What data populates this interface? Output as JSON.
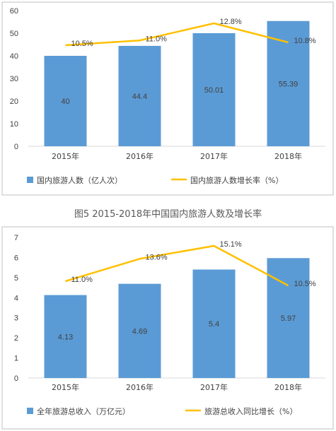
{
  "caption": "图5 2015-2018年中国国内旅游人数及增长率",
  "colors": {
    "bar": "#5B9BD5",
    "line": "#FFC000",
    "frame": "#BFBFBF",
    "text": "#404040"
  },
  "chart_data": [
    {
      "type": "bar",
      "categories": [
        "2015年",
        "2016年",
        "2017年",
        "2018年"
      ],
      "ylim": [
        0,
        60
      ],
      "yticks": [
        0,
        10,
        20,
        30,
        40,
        50,
        60
      ],
      "grid": false,
      "legend_position": "bottom",
      "series": [
        {
          "name": "国内旅游人数（亿人次）",
          "type": "bar",
          "values": [
            40,
            44.4,
            50.01,
            55.39
          ],
          "labels": [
            "40",
            "44.4",
            "50.01",
            "55.39"
          ]
        },
        {
          "name": "国内旅游人数增长率（%）",
          "type": "line",
          "values": [
            10.5,
            11.0,
            12.8,
            10.8
          ],
          "labels": [
            "10.5%",
            "11.0%",
            "12.8%",
            "10.8%"
          ]
        }
      ]
    },
    {
      "type": "bar",
      "categories": [
        "2015年",
        "2016年",
        "2017年",
        "2018年"
      ],
      "ylim": [
        0,
        7
      ],
      "yticks": [
        0,
        1,
        2,
        3,
        4,
        5,
        6,
        7
      ],
      "grid": false,
      "legend_position": "bottom",
      "series": [
        {
          "name": "全年旅游总收入（万亿元）",
          "type": "bar",
          "values": [
            4.13,
            4.69,
            5.4,
            5.97
          ],
          "labels": [
            "4.13",
            "4.69",
            "5.4",
            "5.97"
          ]
        },
        {
          "name": "旅游总收入同比增长（%）",
          "type": "line",
          "values": [
            11.0,
            13.6,
            15.1,
            10.5
          ],
          "labels": [
            "11.0%",
            "13.6%",
            "15.1%",
            "10.5%"
          ]
        }
      ]
    }
  ]
}
